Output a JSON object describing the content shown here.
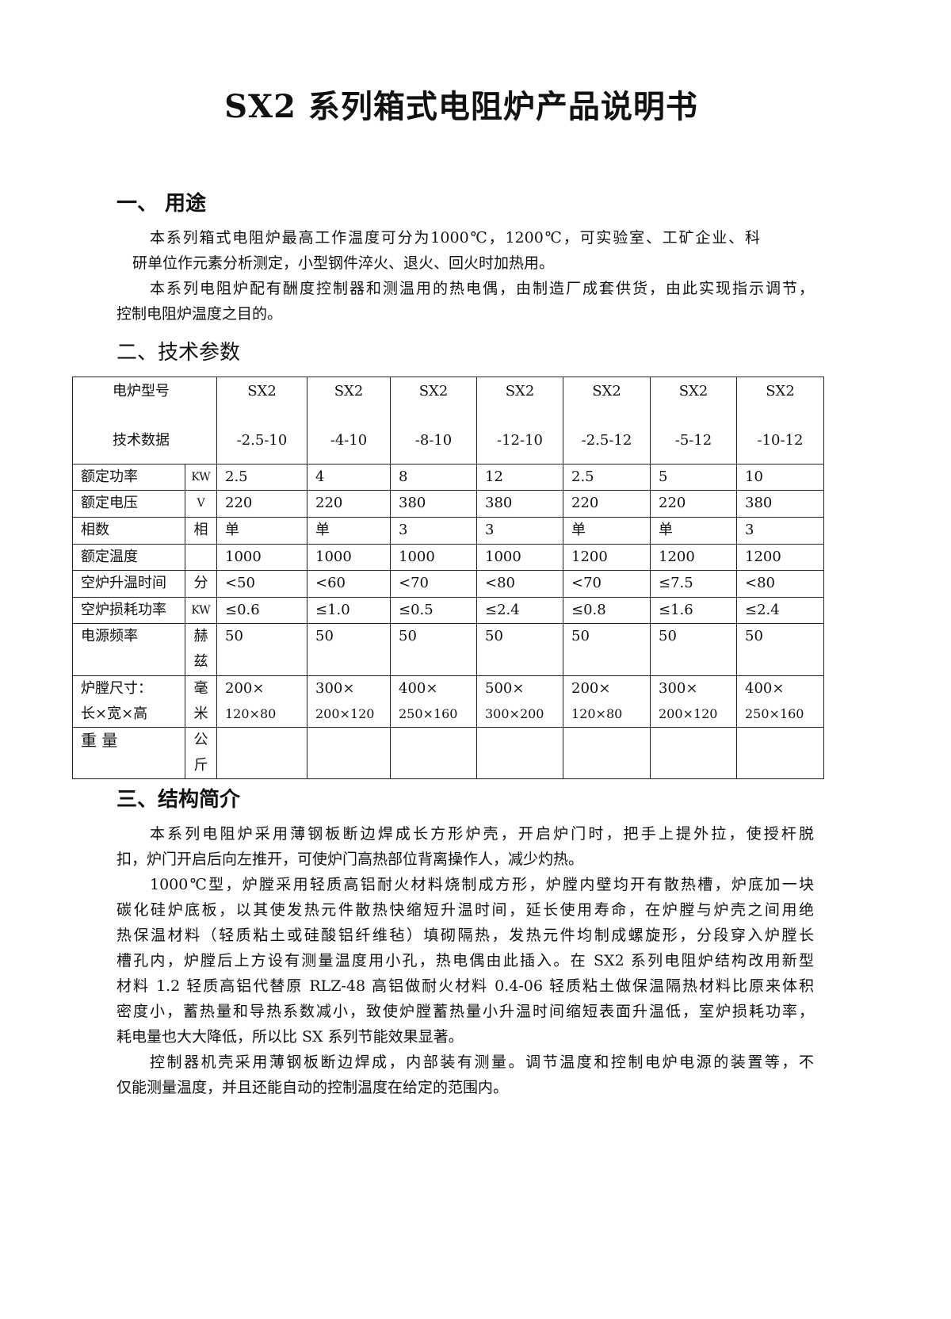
{
  "title": "SX2 系列箱式电阻炉产品说明书",
  "sections": [
    {
      "heading": "一、  用途",
      "lines": [
        [
          "本系列箱式电阻炉最高工作温度可分为1000℃，1200℃，可实验室、工矿企业、科",
          "研单位作元素分析测定，小型钢件淬火、退火、回火时加热用。"
        ],
        [
          "本系列电阻炉配有酬度控制器和测温用的热电偶，由制造厂成套供货，由此实现指示调节，",
          "控制电阻炉温度之目的。"
        ]
      ]
    },
    {
      "heading": "二、技术参数"
    },
    {
      "heading": "三、结构简介",
      "lines": [
        [
          "本系列电阻炉采用薄钢板断边焊成长方形炉壳，开启炉门时，把手上提外拉，使授杆脱",
          "扣，炉门开启后向左推开，可使炉门高热部位背离操作人，减少灼热。"
        ],
        [
          "1000℃型，炉膛采用轻质高铝耐火材料烧制成方形，炉膛内壁均开有散热槽，炉底加一块",
          "碳化硅炉底板，以其使发热元件散热快缩短升温时间，延长使用寿命，在炉膛与炉壳之间用绝",
          "热保温材料（轻质粘土或硅酸铝纤维毡）填砌隔热，发热元件均制成螺旋形，分段穿入炉膛长",
          "槽孔内，炉膛后上方设有测量温度用小孔，热电偶由此插入。在 SX2 系列电阻炉结构改用新型",
          "材料 1.2 轻质高铝代替原 RLZ-48 高铝做耐火材料 0.4-06 轻质粘土做保温隔热材料比原来体积",
          "密度小，蓄热量和导热系数减小，致使炉膛蓄热量小升温时间缩短表面升温低，室炉损耗功率，",
          "耗电量也大大降低，所以比 SX 系列节能效果显著。"
        ],
        [
          "控制器机壳采用薄钢板断边焊成，内部装有测量。调节温度和控制电炉电源的装置等，不",
          "仅能测量温度，并且还能自动的控制温度在给定的范围内。"
        ]
      ]
    }
  ],
  "table": {
    "header_label_top": "电炉型号",
    "header_label_bottom": "技术数据",
    "models": [
      [
        "SX2",
        "-2.5-10"
      ],
      [
        "SX2",
        "-4-10"
      ],
      [
        "SX2",
        "-8-10"
      ],
      [
        "SX2",
        "-12-10"
      ],
      [
        "SX2",
        "-2.5-12"
      ],
      [
        "SX2",
        "-5-12"
      ],
      [
        "SX2",
        "-10-12"
      ]
    ],
    "rows": [
      {
        "label": "额定功率",
        "unit": "KW",
        "values": [
          "2.5",
          "4",
          "8",
          "12",
          "2.5",
          "5",
          "10"
        ]
      },
      {
        "label": "额定电压",
        "unit": "V",
        "values": [
          "220",
          "220",
          "380",
          "380",
          "220",
          "220",
          "380"
        ]
      },
      {
        "label": "相数",
        "unit": "相",
        "values": [
          "单",
          "单",
          "3",
          "3",
          "单",
          "单",
          "3"
        ]
      },
      {
        "label": "额定温度",
        "unit": "",
        "values": [
          "1000",
          "1000",
          "1000",
          "1000",
          "1200",
          "1200",
          "1200"
        ]
      },
      {
        "label": "空炉升温时间",
        "unit": "分",
        "values": [
          "<50",
          "<60",
          "<70",
          "<80",
          "<70",
          "≤7.5",
          "<80"
        ]
      },
      {
        "label": "空炉损耗功率",
        "unit": "KW",
        "values": [
          "≤0.6",
          "≤1.0",
          "≤0.5",
          "≤2.4",
          "≤0.8",
          "≤1.6",
          "≤2.4"
        ]
      },
      {
        "label": "电源频率",
        "unit": "赫兹",
        "values": [
          "50",
          "50",
          "50",
          "50",
          "50",
          "50",
          "50"
        ]
      },
      {
        "label": "炉膛尺寸：",
        "label2": "长×宽×高",
        "unit": "毫米",
        "values": [
          [
            "200×",
            "120×80"
          ],
          [
            "300×",
            "200×120"
          ],
          [
            "400×",
            "250×160"
          ],
          [
            "500×",
            "300×200"
          ],
          [
            "200×",
            "120×80"
          ],
          [
            "300×",
            "200×120"
          ],
          [
            "400×",
            "250×160"
          ]
        ]
      },
      {
        "label": "重 量",
        "unit": "公斤",
        "values": [
          "",
          "",
          "",
          "",
          "",
          "",
          ""
        ]
      }
    ]
  }
}
